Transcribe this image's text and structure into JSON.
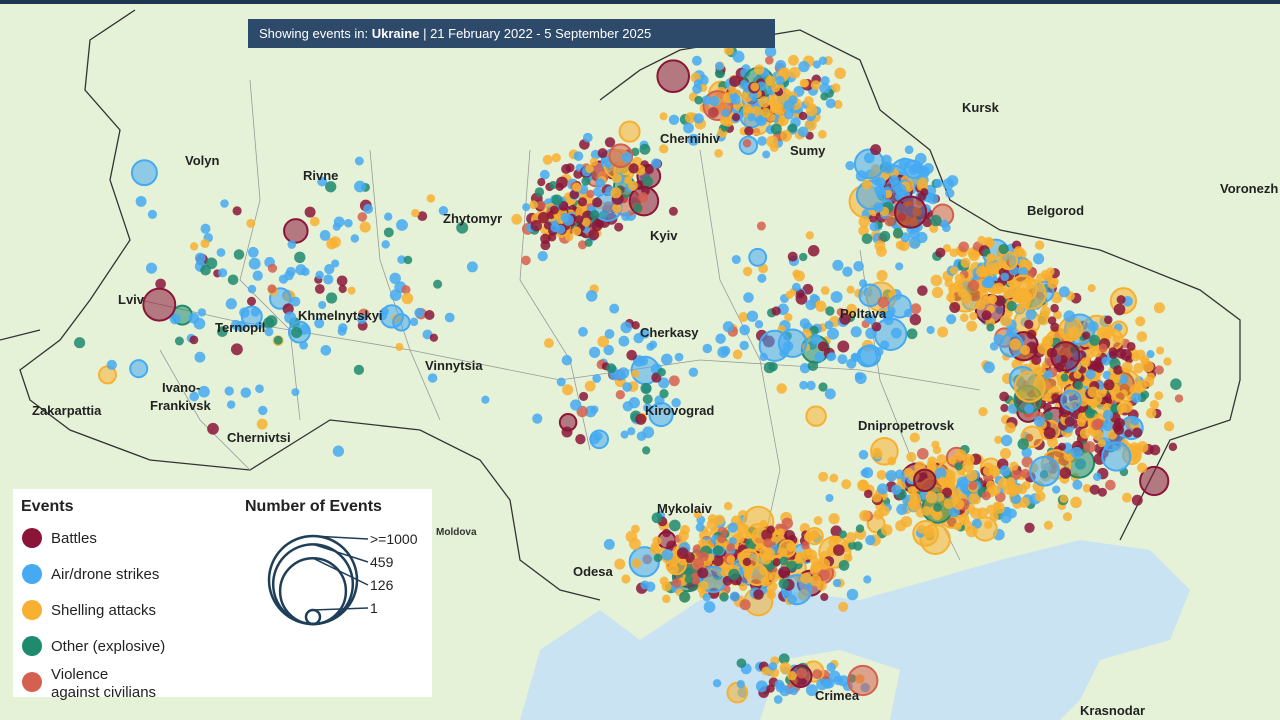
{
  "banner": {
    "prefix": "Showing events in:",
    "country": "Ukraine",
    "range": "| 21 February 2022 - 5 September 2025"
  },
  "places": [
    "Volyn",
    "Rivne",
    "Zhytomyr",
    "Chernihiv",
    "Sumy",
    "Kursk",
    "Belgorod",
    "Voronezh",
    "Lviv",
    "Ternopil",
    "Khmelnytskyi",
    "Kyiv",
    "Cherkasy",
    "Poltava",
    "Vinnytsia",
    "Ivano-",
    "Frankivsk",
    "Zakarpattia",
    "Chernivtsi",
    "Kirovograd",
    "Dnipropetrovsk",
    "Mykolaiv",
    "Odesa",
    "Moldova",
    "Crimea",
    "Krasnodar"
  ],
  "legend": {
    "events_title": "Events",
    "events": [
      {
        "name": "Battles",
        "color": "#8b1538"
      },
      {
        "name": "Air/drone strikes",
        "color": "#45aaf2"
      },
      {
        "name": "Shelling attacks",
        "color": "#f7b030"
      },
      {
        "name": "Other (explosive)",
        "color": "#1e8a6e"
      },
      {
        "name": "Violence against civilians",
        "color": "#d4604f"
      }
    ],
    "size_title": "Number of Events",
    "sizes": [
      {
        "value": 1000,
        "label": ">=1000"
      },
      459,
      126,
      1
    ]
  }
}
